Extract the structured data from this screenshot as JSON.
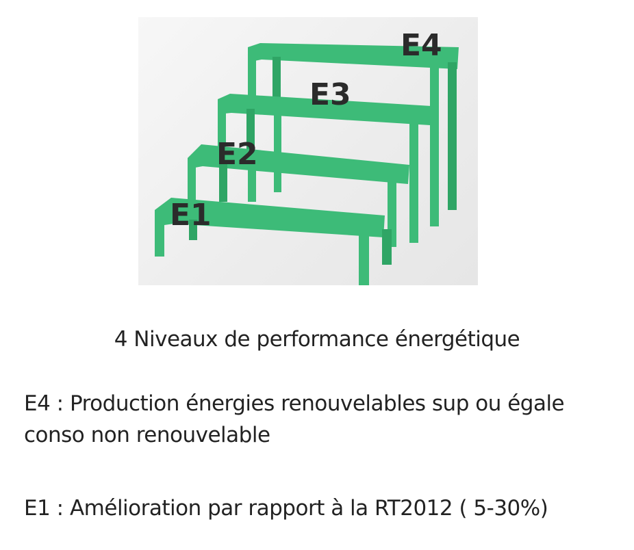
{
  "diagram": {
    "colors": {
      "step": "#3dbb78",
      "step_shade": "#2fa565",
      "label": "#2b2b2b",
      "background": "#efefef"
    },
    "steps": [
      {
        "id": "E1",
        "label": "E1"
      },
      {
        "id": "E2",
        "label": "E2"
      },
      {
        "id": "E3",
        "label": "E3"
      },
      {
        "id": "E4",
        "label": "E4"
      }
    ]
  },
  "caption": "4 Niveaux de performance énergétique",
  "descriptions": {
    "e4": "E4 : Production énergies renouvelables  sup ou égale conso non renouvelable",
    "e1": "E1 : Amélioration par rapport à la RT2012 ( 5-30%)"
  }
}
